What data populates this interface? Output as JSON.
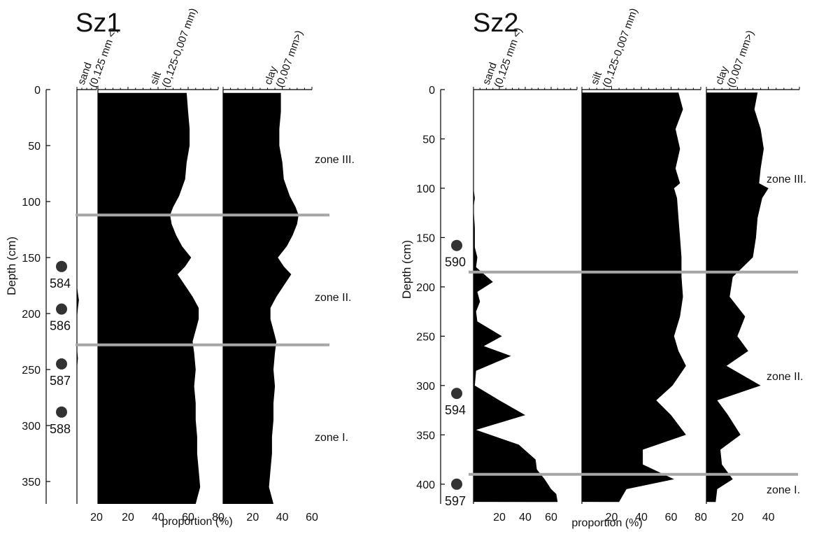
{
  "chart_data": [
    {
      "type": "area",
      "title": "Sz1",
      "ylabel": "Depth (cm)",
      "xlabel": "proportion (%)",
      "ylim": [
        0,
        370
      ],
      "yticks": [
        "0",
        "50",
        "100",
        "150",
        "200",
        "250",
        "300",
        "350"
      ],
      "columns": [
        {
          "name": "sand",
          "label_line1": "sand",
          "label_line2": "(0,125 mm <)",
          "xlim": [
            0,
            20
          ],
          "xticks": [
            "20"
          ],
          "depth": [
            0,
            175,
            182,
            188,
            195,
            205,
            230,
            240,
            250,
            300,
            350,
            370
          ],
          "values": [
            0,
            0,
            1,
            2,
            1,
            0,
            0,
            1,
            0,
            0,
            0,
            0
          ]
        },
        {
          "name": "silt",
          "label_line1": "silt",
          "label_line2": "(0,125-0,007 mm)",
          "xlim": [
            0,
            80
          ],
          "xticks": [
            "20",
            "40",
            "60",
            "80"
          ],
          "depth": [
            3,
            20,
            35,
            50,
            65,
            80,
            95,
            105,
            112,
            120,
            130,
            140,
            150,
            158,
            165,
            175,
            185,
            195,
            205,
            215,
            225,
            235,
            250,
            265,
            280,
            295,
            310,
            325,
            340,
            355,
            365,
            370
          ],
          "values": [
            59,
            60,
            61,
            61,
            59,
            58,
            54,
            50,
            48,
            49,
            52,
            56,
            62,
            58,
            53,
            58,
            63,
            67,
            67,
            65,
            63,
            64,
            65,
            64,
            65,
            65,
            66,
            66,
            67,
            68,
            66,
            65
          ]
        },
        {
          "name": "clay",
          "label_line1": "clay",
          "label_line2": "(0,007 mm>)",
          "xlim": [
            0,
            60
          ],
          "xticks": [
            "20",
            "40",
            "60"
          ],
          "depth": [
            3,
            20,
            35,
            50,
            65,
            80,
            95,
            105,
            112,
            120,
            130,
            140,
            150,
            158,
            165,
            175,
            185,
            195,
            205,
            215,
            225,
            235,
            250,
            265,
            280,
            295,
            310,
            325,
            340,
            355,
            365,
            370
          ],
          "values": [
            39,
            39,
            38,
            38,
            40,
            41,
            45,
            49,
            51,
            50,
            47,
            43,
            37,
            41,
            46,
            41,
            36,
            32,
            32,
            34,
            36,
            35,
            34,
            35,
            34,
            34,
            33,
            33,
            32,
            31,
            33,
            34
          ]
        }
      ],
      "zone_boundaries": [
        112,
        228
      ],
      "zones": [
        {
          "label": "zone III.",
          "depth": 62
        },
        {
          "label": "zone II.",
          "depth": 185
        },
        {
          "label": "zone I.",
          "depth": 310
        }
      ],
      "samples": [
        {
          "label": "584",
          "depth": 158
        },
        {
          "label": "586",
          "depth": 196
        },
        {
          "label": "587",
          "depth": 245
        },
        {
          "label": "588",
          "depth": 288
        }
      ]
    },
    {
      "type": "area",
      "title": "Sz2",
      "ylabel": "Depth (cm)",
      "xlabel": "proportion (%)",
      "ylim": [
        0,
        420
      ],
      "yticks": [
        "0",
        "50",
        "100",
        "150",
        "200",
        "250",
        "300",
        "350",
        "400"
      ],
      "columns": [
        {
          "name": "sand",
          "label_line1": "sand",
          "label_line2": "(0,125 mm <)",
          "xlim": [
            0,
            80
          ],
          "xticks": [
            "20",
            "40",
            "60"
          ],
          "depth": [
            0,
            100,
            110,
            120,
            140,
            160,
            170,
            180,
            195,
            205,
            215,
            225,
            235,
            250,
            260,
            270,
            285,
            300,
            315,
            330,
            345,
            360,
            375,
            385,
            395,
            405,
            410,
            418
          ],
          "values": [
            0,
            0,
            1,
            0,
            1,
            1,
            3,
            2,
            15,
            3,
            5,
            2,
            3,
            22,
            8,
            29,
            2,
            1,
            20,
            40,
            2,
            35,
            48,
            49,
            55,
            60,
            64,
            65
          ]
        },
        {
          "name": "silt",
          "label_line1": "silt",
          "label_line2": "(0,125-0,007 mm)",
          "xlim": [
            0,
            80
          ],
          "xticks": [
            "20",
            "40",
            "60",
            "80"
          ],
          "depth": [
            3,
            20,
            40,
            60,
            80,
            95,
            100,
            110,
            130,
            150,
            170,
            190,
            210,
            230,
            250,
            265,
            280,
            300,
            315,
            330,
            350,
            365,
            380,
            395,
            405,
            418
          ],
          "values": [
            65,
            68,
            63,
            66,
            63,
            66,
            62,
            64,
            65,
            66,
            67,
            67,
            68,
            66,
            62,
            65,
            70,
            61,
            50,
            60,
            70,
            41,
            41,
            62,
            30,
            25
          ]
        },
        {
          "name": "clay",
          "label_line1": "clay",
          "label_line2": "(0,007 mm>)",
          "xlim": [
            0,
            60
          ],
          "xticks": [
            "20",
            "40"
          ],
          "depth": [
            3,
            20,
            40,
            60,
            80,
            95,
            100,
            110,
            130,
            150,
            170,
            190,
            210,
            230,
            250,
            265,
            280,
            300,
            315,
            330,
            350,
            365,
            380,
            395,
            405,
            418
          ],
          "values": [
            33,
            31,
            35,
            37,
            35,
            34,
            40,
            36,
            33,
            32,
            30,
            17,
            15,
            25,
            20,
            27,
            13,
            35,
            7,
            14,
            22,
            9,
            10,
            17,
            7,
            6
          ]
        }
      ],
      "zone_boundaries": [
        185,
        390
      ],
      "zones": [
        {
          "label": "zone III.",
          "depth": 90
        },
        {
          "label": "zone II.",
          "depth": 290
        },
        {
          "label": "zone I.",
          "depth": 405
        }
      ],
      "samples": [
        {
          "label": "590",
          "depth": 158
        },
        {
          "label": "594",
          "depth": 308
        },
        {
          "label": "597",
          "depth": 400
        }
      ]
    }
  ],
  "colors": {
    "fill": "#000000",
    "zone_line": "#a6a6a6",
    "marker": "#333333"
  }
}
